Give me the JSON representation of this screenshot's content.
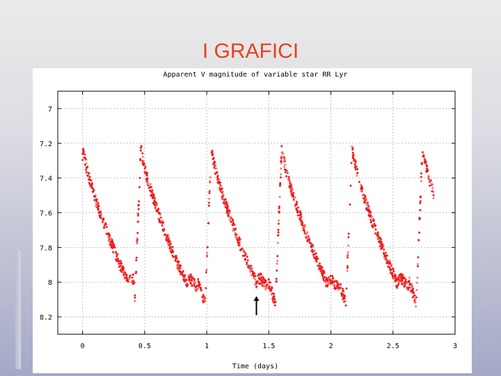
{
  "slide": {
    "title": "I GRAFICI"
  },
  "chart_data": {
    "type": "scatter",
    "title": "Apparent V magnitude of variable star RR Lyr",
    "xlabel": "Time (days)",
    "ylabel": "",
    "xlim": [
      -0.2,
      3.0
    ],
    "ylim": [
      6.9,
      8.3
    ],
    "y_inverted": true,
    "x_ticks": [
      0,
      0.5,
      1,
      1.5,
      2,
      2.5,
      3
    ],
    "x_tick_labels": [
      "0",
      "0.5",
      "1",
      "1.5",
      "2",
      "2.5",
      "3"
    ],
    "y_ticks": [
      7,
      7.2,
      7.4,
      7.6,
      7.8,
      8,
      8.2
    ],
    "y_tick_labels": [
      "7",
      "7.2",
      "7.4",
      "7.6",
      "7.8",
      "8",
      "8.2"
    ],
    "grid": true,
    "marker_color": "#ee1c1c",
    "marker_color_light": "#f07a7a",
    "light_curve": {
      "period_days": 0.567,
      "rise_starts": [
        -0.047,
        0.42,
        0.987,
        1.554,
        2.121,
        2.688
      ],
      "rise_duration_days": 0.05,
      "max_magnitude": 7.22,
      "min_magnitude": 8.12,
      "plateau_magnitude": 8.0,
      "observation_range": [
        0.0,
        2.83
      ]
    },
    "annotations": [
      {
        "type": "arrow",
        "x": 1.4,
        "y_from": 8.19,
        "y_to": 8.08
      }
    ]
  }
}
